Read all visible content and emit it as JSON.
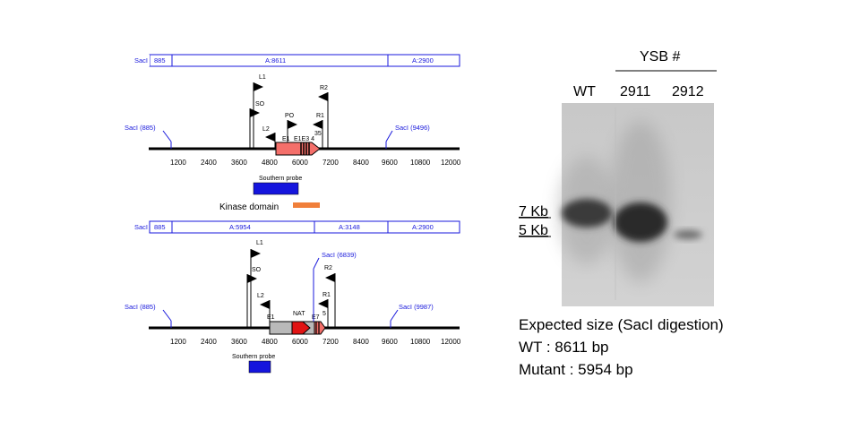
{
  "top_map": {
    "segments": [
      "SacI",
      "885",
      "A:8611",
      "A:2900"
    ],
    "sites": [
      {
        "label": "SacI (885)"
      },
      {
        "label": "SacI (9496)"
      }
    ],
    "primers": {
      "L1": "L1",
      "SO": "SO",
      "L2": "L2",
      "PO": "PO",
      "R1": "R1",
      "R2": "R2",
      "E1": "E1",
      "E3": "E1E3 4",
      "E5": "35"
    },
    "ticks": [
      "1200",
      "2400",
      "3600",
      "4800",
      "6000",
      "7200",
      "8400",
      "9600",
      "10800",
      "12000"
    ],
    "probe_label": "Southern probe",
    "kinase_label": "Kinase domain",
    "colors": {
      "gene": "#f46f6a",
      "probe": "#1515dd",
      "kinase": "#f07f3a"
    }
  },
  "bottom_map": {
    "segments": [
      "SacI",
      "885",
      "A:5954",
      "A:3148",
      "A:2900"
    ],
    "sites": [
      {
        "label": "SacI (885)"
      },
      {
        "label": "SacI (6839)"
      },
      {
        "label": "SacI (9987)"
      }
    ],
    "primers": {
      "L1": "L1",
      "SO": "SO",
      "L2": "L2",
      "R1": "R1",
      "R2": "R2",
      "E1": "E1",
      "NAT": "NAT",
      "E7": "E7",
      "E5": "5"
    },
    "ticks": [
      "1200",
      "2400",
      "3600",
      "4800",
      "6000",
      "7200",
      "8400",
      "9600",
      "10800",
      "12000"
    ],
    "probe_label": "Southern probe",
    "colors": {
      "marker": "#e11414",
      "gray": "#b9b9b9"
    }
  },
  "blot": {
    "header": "YSB #",
    "lanes": [
      "WT",
      "2911",
      "2912"
    ],
    "markers": [
      "7 Kb",
      "5 Kb"
    ]
  },
  "caption": {
    "line1": "Expected size (SacI digestion)",
    "line2": "WT : 8611 bp",
    "line3": "Mutant : 5954 bp"
  }
}
